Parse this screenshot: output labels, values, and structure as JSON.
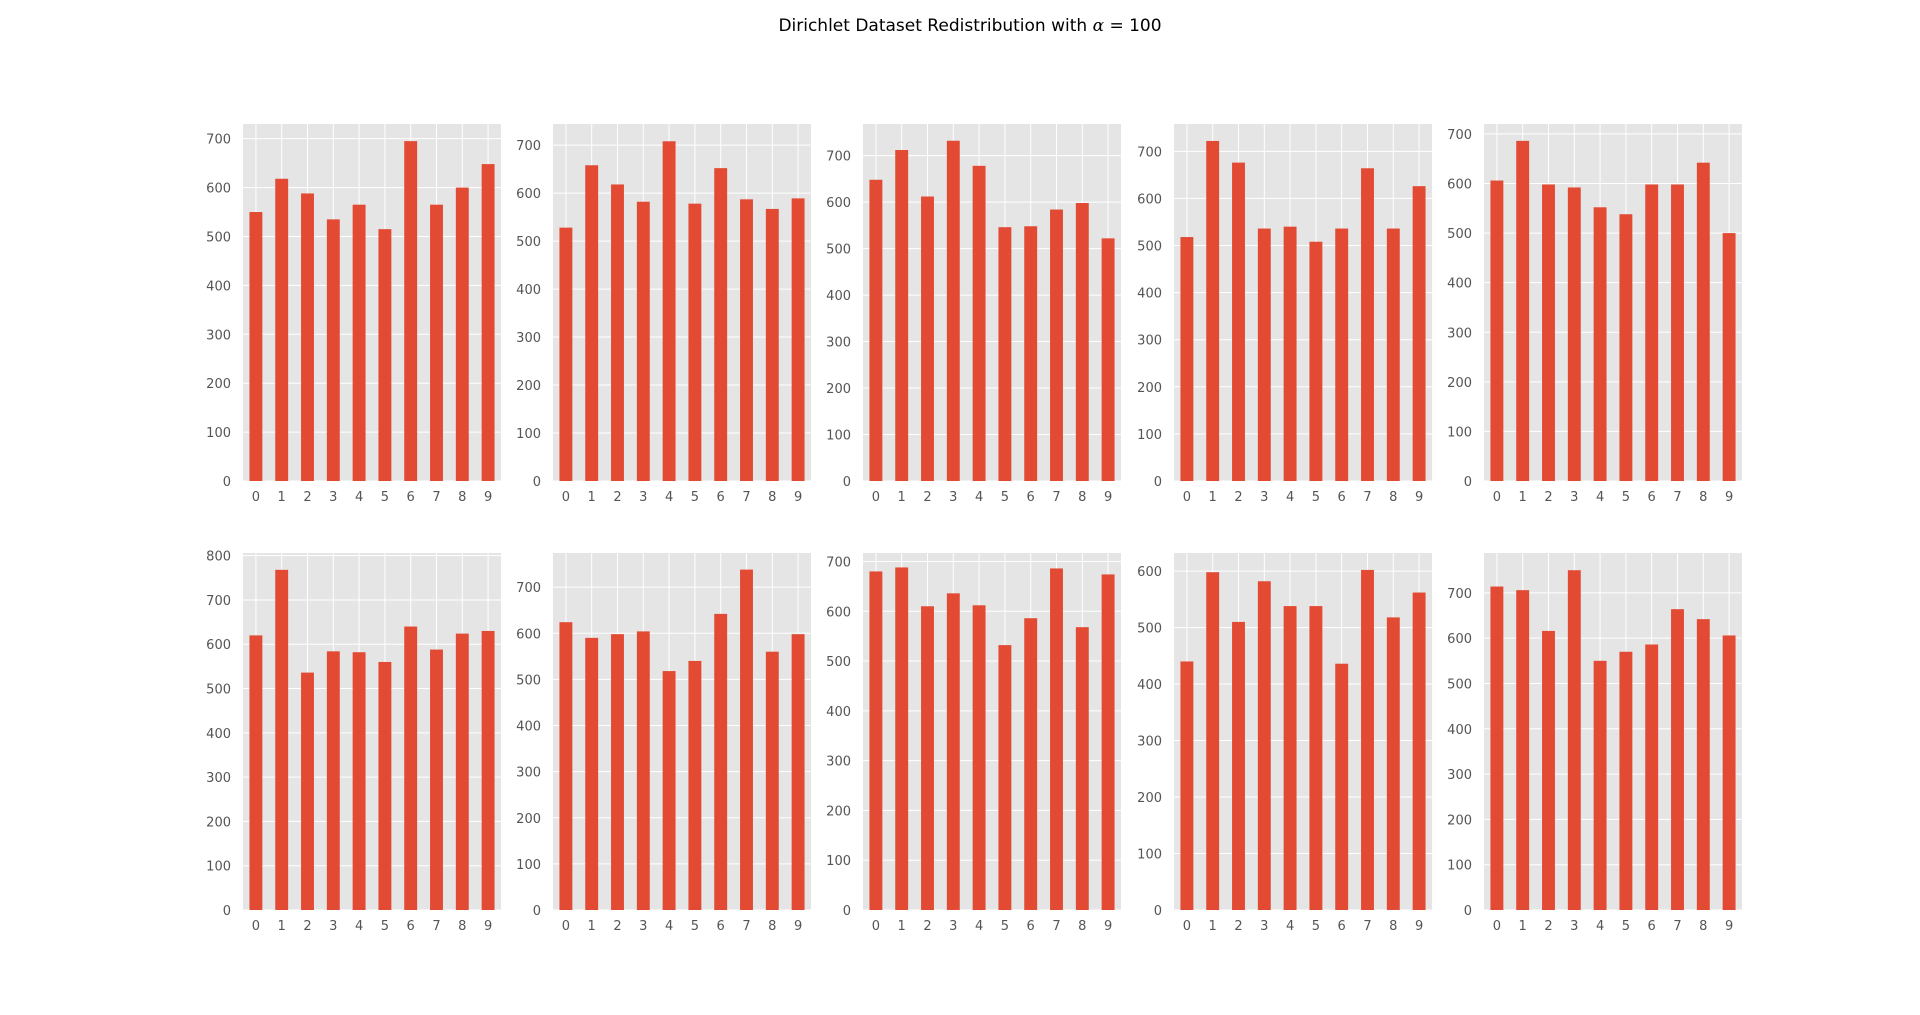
{
  "figure": {
    "title_prefix": "Dirichlet Dataset Redistribution with ",
    "title_symbol": "α",
    "title_suffix": " = 100"
  },
  "colors": {
    "bar": "#E24A33",
    "panel_background": "#E5E5E5",
    "grid": "#FFFFFF",
    "tick_label": "#555555"
  },
  "chart_data": [
    {
      "type": "bar",
      "title": "",
      "xlabel": "",
      "ylabel": "",
      "grid": true,
      "categories": [
        "0",
        "1",
        "2",
        "3",
        "4",
        "5",
        "6",
        "7",
        "8",
        "9"
      ],
      "values": [
        550,
        618,
        588,
        535,
        565,
        515,
        695,
        565,
        600,
        648
      ],
      "ylim": [
        0,
        730
      ],
      "yticks": [
        0,
        100,
        200,
        300,
        400,
        500,
        600,
        700
      ]
    },
    {
      "type": "bar",
      "title": "",
      "xlabel": "",
      "ylabel": "",
      "grid": true,
      "categories": [
        "0",
        "1",
        "2",
        "3",
        "4",
        "5",
        "6",
        "7",
        "8",
        "9"
      ],
      "values": [
        528,
        658,
        618,
        582,
        708,
        578,
        652,
        587,
        567,
        589
      ],
      "ylim": [
        0,
        744
      ],
      "yticks": [
        0,
        100,
        200,
        300,
        400,
        500,
        600,
        700
      ]
    },
    {
      "type": "bar",
      "title": "",
      "xlabel": "",
      "ylabel": "",
      "grid": true,
      "categories": [
        "0",
        "1",
        "2",
        "3",
        "4",
        "5",
        "6",
        "7",
        "8",
        "9"
      ],
      "values": [
        648,
        712,
        612,
        732,
        678,
        546,
        548,
        584,
        598,
        522
      ],
      "ylim": [
        0,
        768
      ],
      "yticks": [
        0,
        100,
        200,
        300,
        400,
        500,
        600,
        700
      ]
    },
    {
      "type": "bar",
      "title": "",
      "xlabel": "",
      "ylabel": "",
      "grid": true,
      "categories": [
        "0",
        "1",
        "2",
        "3",
        "4",
        "5",
        "6",
        "7",
        "8",
        "9"
      ],
      "values": [
        518,
        722,
        676,
        536,
        540,
        508,
        536,
        664,
        536,
        626
      ],
      "ylim": [
        0,
        758
      ],
      "yticks": [
        0,
        100,
        200,
        300,
        400,
        500,
        600,
        700
      ]
    },
    {
      "type": "bar",
      "title": "",
      "xlabel": "",
      "ylabel": "",
      "grid": true,
      "categories": [
        "0",
        "1",
        "2",
        "3",
        "4",
        "5",
        "6",
        "7",
        "8",
        "9"
      ],
      "values": [
        606,
        686,
        598,
        592,
        552,
        538,
        598,
        598,
        642,
        500
      ],
      "ylim": [
        0,
        720
      ],
      "yticks": [
        0,
        100,
        200,
        300,
        400,
        500,
        600,
        700
      ]
    },
    {
      "type": "bar",
      "title": "",
      "xlabel": "",
      "ylabel": "",
      "grid": true,
      "categories": [
        "0",
        "1",
        "2",
        "3",
        "4",
        "5",
        "6",
        "7",
        "8",
        "9"
      ],
      "values": [
        620,
        768,
        536,
        584,
        582,
        560,
        640,
        588,
        624,
        630
      ],
      "ylim": [
        0,
        806
      ],
      "yticks": [
        0,
        100,
        200,
        300,
        400,
        500,
        600,
        700,
        800
      ]
    },
    {
      "type": "bar",
      "title": "",
      "xlabel": "",
      "ylabel": "",
      "grid": true,
      "categories": [
        "0",
        "1",
        "2",
        "3",
        "4",
        "5",
        "6",
        "7",
        "8",
        "9"
      ],
      "values": [
        624,
        590,
        598,
        604,
        518,
        540,
        642,
        738,
        560,
        598
      ],
      "ylim": [
        0,
        774
      ],
      "yticks": [
        0,
        100,
        200,
        300,
        400,
        500,
        600,
        700
      ]
    },
    {
      "type": "bar",
      "title": "",
      "xlabel": "",
      "ylabel": "",
      "grid": true,
      "categories": [
        "0",
        "1",
        "2",
        "3",
        "4",
        "5",
        "6",
        "7",
        "8",
        "9"
      ],
      "values": [
        680,
        688,
        610,
        636,
        612,
        532,
        586,
        686,
        568,
        674
      ],
      "ylim": [
        0,
        717
      ],
      "yticks": [
        0,
        100,
        200,
        300,
        400,
        500,
        600,
        700
      ]
    },
    {
      "type": "bar",
      "title": "",
      "xlabel": "",
      "ylabel": "",
      "grid": true,
      "categories": [
        "0",
        "1",
        "2",
        "3",
        "4",
        "5",
        "6",
        "7",
        "8",
        "9"
      ],
      "values": [
        440,
        598,
        510,
        582,
        538,
        538,
        436,
        602,
        518,
        562
      ],
      "ylim": [
        0,
        632
      ],
      "yticks": [
        0,
        100,
        200,
        300,
        400,
        500,
        600
      ]
    },
    {
      "type": "bar",
      "title": "",
      "xlabel": "",
      "ylabel": "",
      "grid": true,
      "categories": [
        "0",
        "1",
        "2",
        "3",
        "4",
        "5",
        "6",
        "7",
        "8",
        "9"
      ],
      "values": [
        714,
        706,
        616,
        750,
        550,
        570,
        586,
        664,
        642,
        606
      ],
      "ylim": [
        0,
        788
      ],
      "yticks": [
        0,
        100,
        200,
        300,
        400,
        500,
        600,
        700
      ]
    }
  ]
}
